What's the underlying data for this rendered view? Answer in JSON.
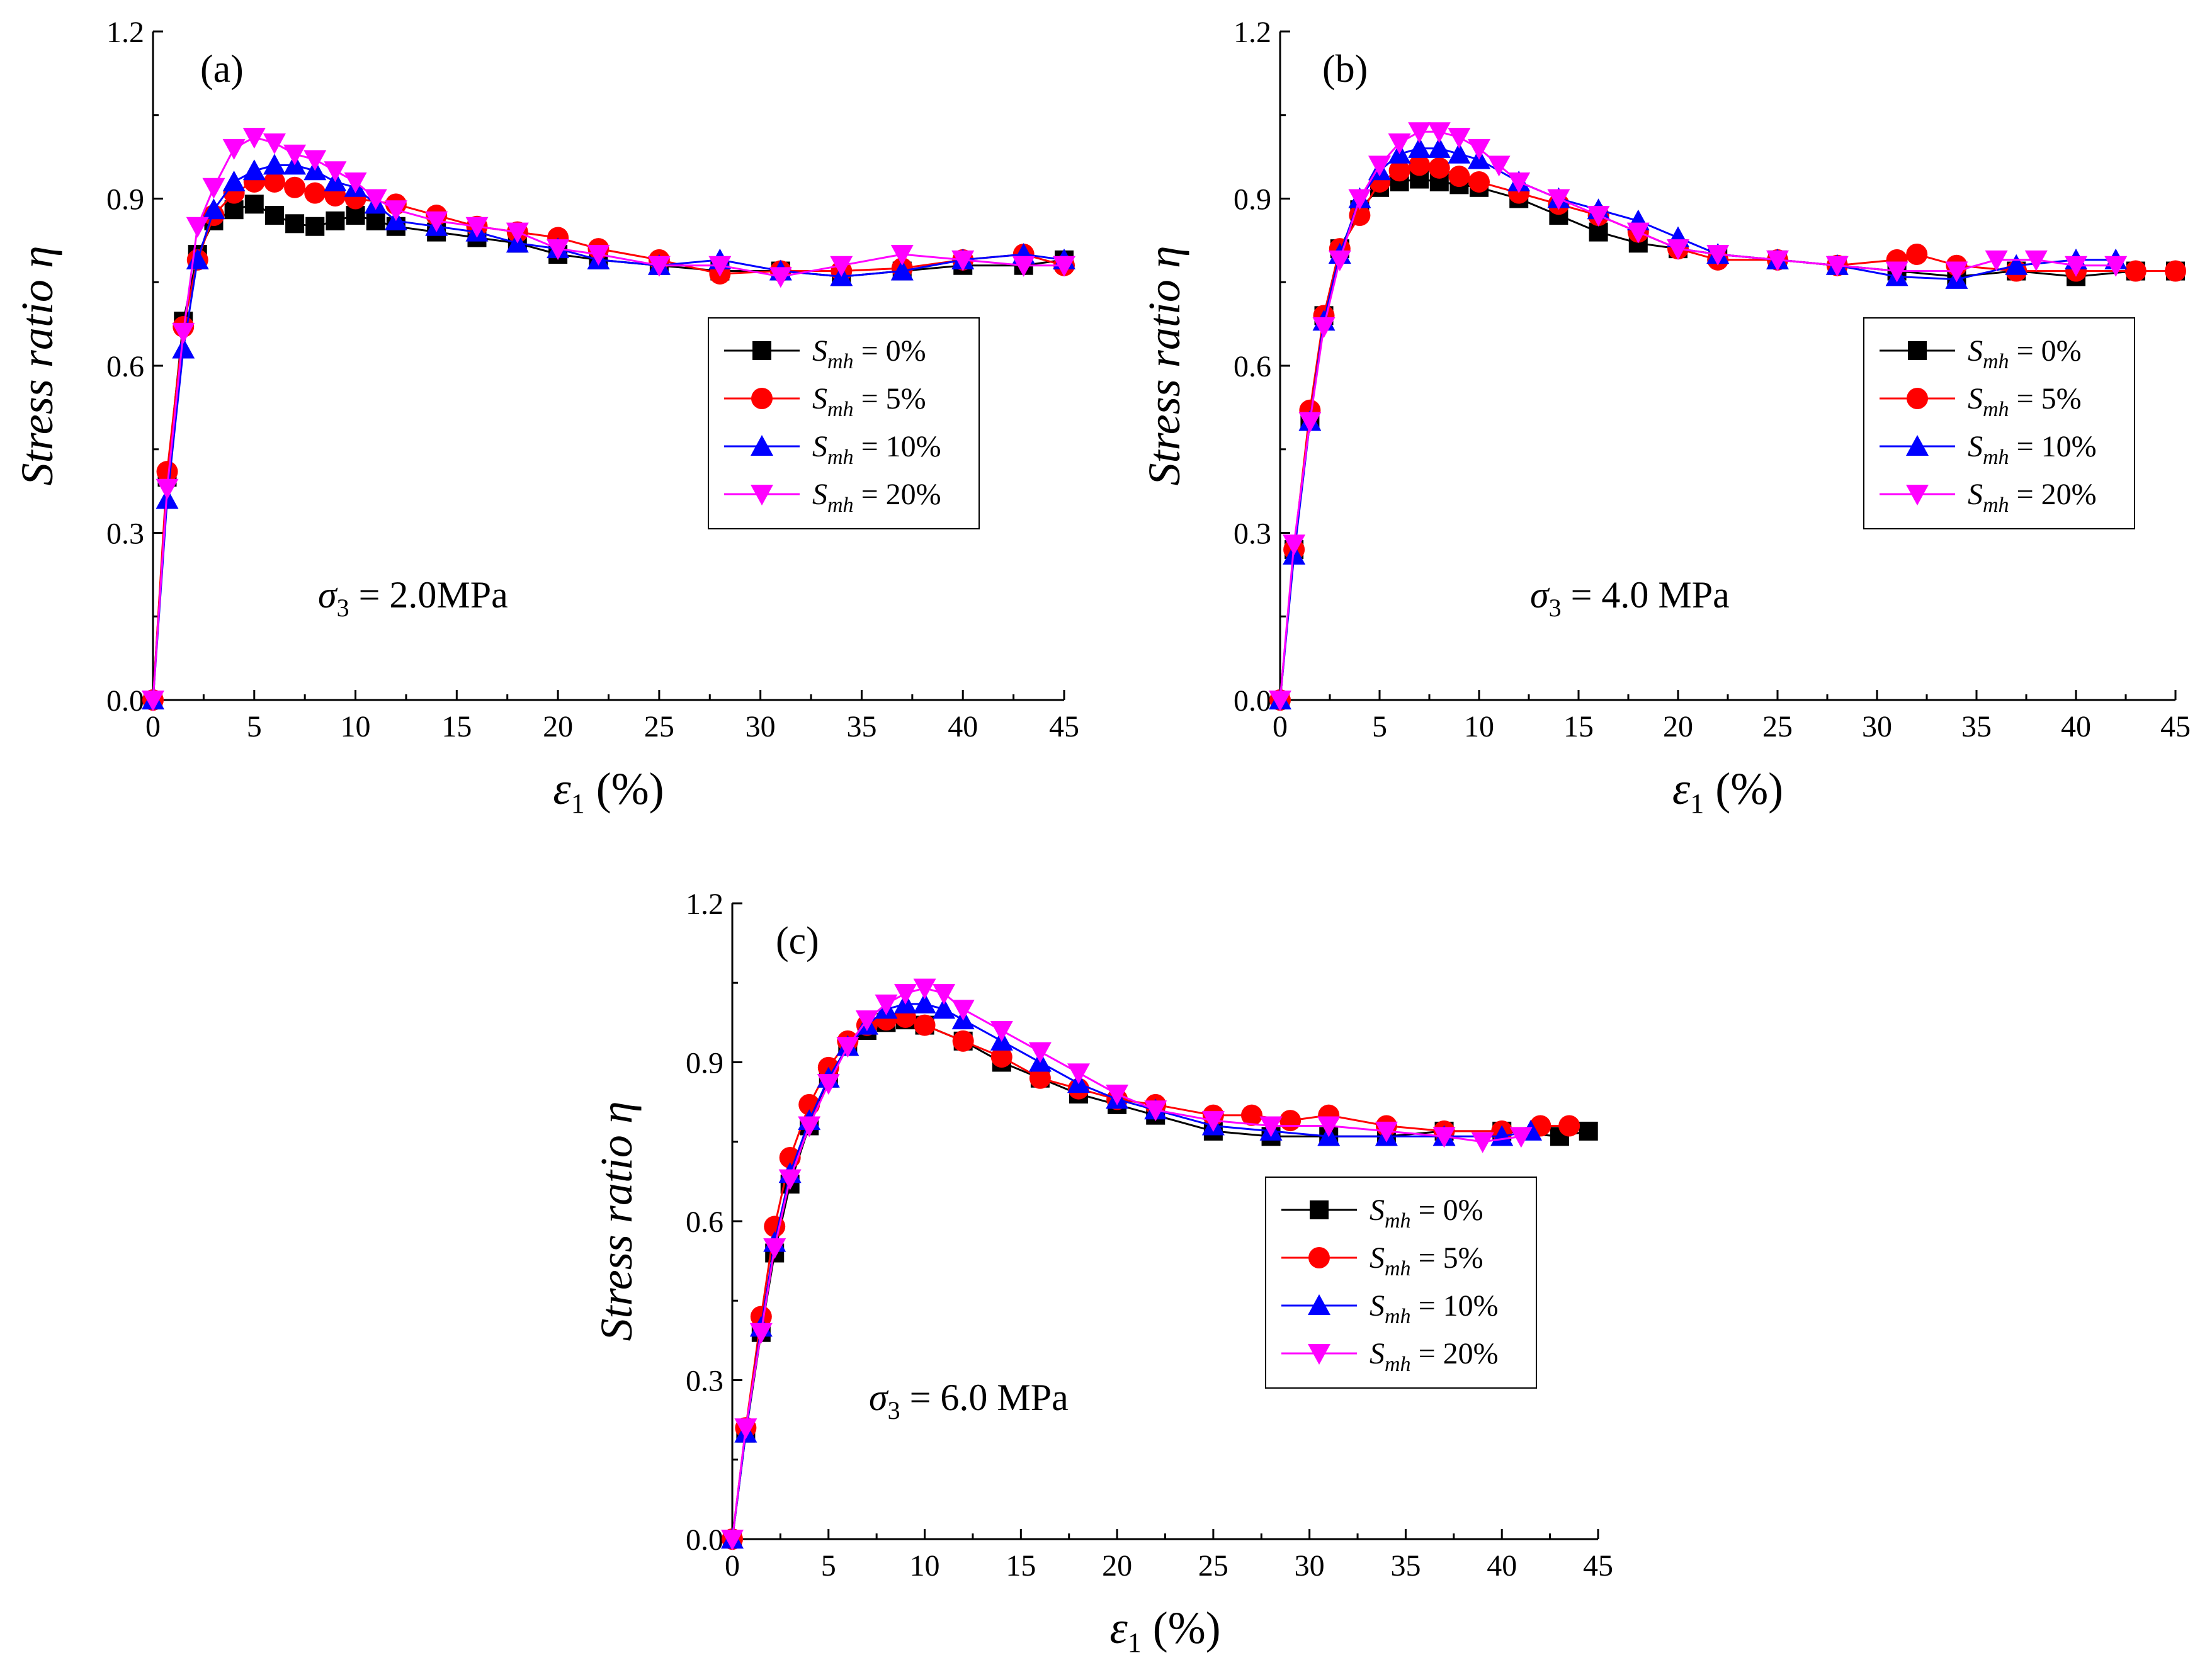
{
  "figure": {
    "legend_entries": [
      {
        "sym": "S",
        "sub": "mh",
        "value": " = 0%",
        "color": "#000000",
        "marker": "square"
      },
      {
        "sym": "S",
        "sub": "mh",
        "value": " = 5%",
        "color": "#ff0000",
        "marker": "circle"
      },
      {
        "sym": "S",
        "sub": "mh",
        "value": " = 10%",
        "color": "#0000ff",
        "marker": "triangle-up"
      },
      {
        "sym": "S",
        "sub": "mh",
        "value": " = 20%",
        "color": "#ff00ff",
        "marker": "triangle-down"
      }
    ]
  },
  "chart_data": [
    {
      "type": "line",
      "panel_label": "(a)",
      "annotation": {
        "sym": "σ",
        "sub": "3",
        "text": " = 2.0MPa"
      },
      "ylabel_italic": "Stress ratio ",
      "ylabel_symbol": "η",
      "xlabel_symbol": "ε",
      "xlabel_sub": "1",
      "xlabel_unit": "(%)",
      "xlim": [
        0,
        45
      ],
      "ylim": [
        0,
        1.2
      ],
      "xticks": [
        0,
        5,
        10,
        15,
        20,
        25,
        30,
        35,
        40,
        45
      ],
      "yticks": [
        "0.0",
        "0.3",
        "0.6",
        "0.9",
        "1.2"
      ],
      "series": [
        {
          "name": "S_mh = 0%",
          "x": [
            0,
            0.7,
            1.5,
            2.2,
            3,
            4,
            5,
            6,
            7,
            8,
            9,
            10,
            11,
            12,
            14,
            16,
            18,
            20,
            22,
            25,
            28,
            31,
            34,
            37,
            40,
            43,
            45
          ],
          "y": [
            0,
            0.4,
            0.68,
            0.8,
            0.86,
            0.88,
            0.89,
            0.87,
            0.855,
            0.85,
            0.86,
            0.87,
            0.86,
            0.85,
            0.84,
            0.83,
            0.82,
            0.8,
            0.79,
            0.78,
            0.77,
            0.77,
            0.76,
            0.77,
            0.78,
            0.78,
            0.79
          ]
        },
        {
          "name": "S_mh = 5%",
          "x": [
            0,
            0.7,
            1.5,
            2.2,
            3,
            4,
            5,
            6,
            7,
            8,
            9,
            10,
            12,
            14,
            16,
            18,
            20,
            22,
            25,
            28,
            31,
            34,
            37,
            40,
            43,
            45
          ],
          "y": [
            0,
            0.41,
            0.67,
            0.79,
            0.87,
            0.91,
            0.93,
            0.93,
            0.92,
            0.91,
            0.905,
            0.9,
            0.89,
            0.87,
            0.85,
            0.84,
            0.83,
            0.81,
            0.79,
            0.765,
            0.77,
            0.77,
            0.775,
            0.79,
            0.8,
            0.78
          ]
        },
        {
          "name": "S_mh = 10%",
          "x": [
            0,
            0.7,
            1.5,
            2.2,
            3,
            4,
            5,
            6,
            7,
            8,
            9,
            10,
            11,
            12,
            14,
            16,
            18,
            20,
            22,
            25,
            28,
            31,
            34,
            37,
            40,
            43,
            45
          ],
          "y": [
            0,
            0.36,
            0.63,
            0.79,
            0.88,
            0.93,
            0.95,
            0.96,
            0.96,
            0.95,
            0.93,
            0.92,
            0.89,
            0.86,
            0.85,
            0.84,
            0.82,
            0.81,
            0.79,
            0.78,
            0.79,
            0.77,
            0.76,
            0.77,
            0.79,
            0.8,
            0.79
          ]
        },
        {
          "name": "S_mh = 20%",
          "x": [
            0,
            0.7,
            1.5,
            2.2,
            3,
            4,
            5,
            6,
            7,
            8,
            9,
            10,
            11,
            12,
            14,
            16,
            18,
            20,
            22,
            25,
            28,
            31,
            34,
            37,
            40,
            43,
            45
          ],
          "y": [
            0,
            0.38,
            0.66,
            0.85,
            0.92,
            0.99,
            1.01,
            1.0,
            0.98,
            0.97,
            0.95,
            0.93,
            0.9,
            0.88,
            0.86,
            0.85,
            0.84,
            0.81,
            0.8,
            0.78,
            0.78,
            0.76,
            0.78,
            0.8,
            0.79,
            0.78,
            0.78
          ]
        }
      ]
    },
    {
      "type": "line",
      "panel_label": "(b)",
      "annotation": {
        "sym": "σ",
        "sub": "3",
        "text": " = 4.0 MPa"
      },
      "ylabel_italic": "Stress ratio ",
      "ylabel_symbol": "η",
      "xlabel_symbol": "ε",
      "xlabel_sub": "1",
      "xlabel_unit": "(%)",
      "xlim": [
        0,
        45
      ],
      "ylim": [
        0,
        1.2
      ],
      "xticks": [
        0,
        5,
        10,
        15,
        20,
        25,
        30,
        35,
        40,
        45
      ],
      "yticks": [
        "0.0",
        "0.3",
        "0.6",
        "0.9",
        "1.2"
      ],
      "series": [
        {
          "name": "S_mh = 0%",
          "x": [
            0,
            0.7,
            1.5,
            2.2,
            3,
            4,
            5,
            6,
            7,
            8,
            9,
            10,
            12,
            14,
            16,
            18,
            20,
            22,
            25,
            28,
            31,
            34,
            37,
            40,
            43,
            45
          ],
          "y": [
            0,
            0.27,
            0.5,
            0.69,
            0.81,
            0.88,
            0.92,
            0.93,
            0.935,
            0.93,
            0.925,
            0.92,
            0.9,
            0.87,
            0.84,
            0.82,
            0.81,
            0.8,
            0.79,
            0.78,
            0.77,
            0.76,
            0.77,
            0.76,
            0.77,
            0.77
          ]
        },
        {
          "name": "S_mh = 5%",
          "x": [
            0,
            0.7,
            1.5,
            2.2,
            3,
            4,
            5,
            6,
            7,
            8,
            9,
            10,
            12,
            14,
            16,
            18,
            20,
            22,
            25,
            28,
            31,
            32,
            34,
            37,
            40,
            43,
            45
          ],
          "y": [
            0,
            0.27,
            0.52,
            0.69,
            0.81,
            0.87,
            0.93,
            0.95,
            0.96,
            0.955,
            0.94,
            0.93,
            0.91,
            0.89,
            0.87,
            0.84,
            0.81,
            0.79,
            0.79,
            0.78,
            0.79,
            0.8,
            0.78,
            0.77,
            0.77,
            0.77,
            0.77
          ]
        },
        {
          "name": "S_mh = 10%",
          "x": [
            0,
            0.7,
            1.5,
            2.2,
            3,
            4,
            5,
            6,
            7,
            8,
            9,
            10,
            12,
            14,
            16,
            18,
            20,
            22,
            25,
            28,
            31,
            34,
            37,
            40,
            42
          ],
          "y": [
            0,
            0.26,
            0.5,
            0.68,
            0.8,
            0.9,
            0.95,
            0.98,
            0.99,
            0.99,
            0.98,
            0.97,
            0.93,
            0.9,
            0.88,
            0.86,
            0.83,
            0.8,
            0.79,
            0.78,
            0.76,
            0.755,
            0.78,
            0.79,
            0.79
          ]
        },
        {
          "name": "S_mh = 20%",
          "x": [
            0,
            0.7,
            1.5,
            2.2,
            3,
            4,
            5,
            6,
            7,
            8,
            9,
            10,
            11,
            12,
            14,
            16,
            18,
            20,
            22,
            25,
            28,
            31,
            34,
            36,
            38,
            40,
            42
          ],
          "y": [
            0,
            0.28,
            0.5,
            0.67,
            0.79,
            0.9,
            0.96,
            1.0,
            1.02,
            1.02,
            1.01,
            0.99,
            0.96,
            0.93,
            0.9,
            0.87,
            0.84,
            0.81,
            0.8,
            0.79,
            0.78,
            0.77,
            0.77,
            0.79,
            0.79,
            0.78,
            0.78
          ]
        }
      ]
    },
    {
      "type": "line",
      "panel_label": "(c)",
      "annotation": {
        "sym": "σ",
        "sub": "3",
        "text": " = 6.0 MPa"
      },
      "ylabel_italic": "Stress ratio ",
      "ylabel_symbol": "η",
      "xlabel_symbol": "ε",
      "xlabel_sub": "1",
      "xlabel_unit": "(%)",
      "xlim": [
        0,
        45
      ],
      "ylim": [
        0,
        1.2
      ],
      "xticks": [
        0,
        5,
        10,
        15,
        20,
        25,
        30,
        35,
        40,
        45
      ],
      "yticks": [
        "0.0",
        "0.3",
        "0.6",
        "0.9",
        "1.2"
      ],
      "series": [
        {
          "name": "S_mh = 0%",
          "x": [
            0,
            0.7,
            1.5,
            2.2,
            3,
            4,
            5,
            6,
            7,
            8,
            9,
            10,
            12,
            14,
            16,
            18,
            20,
            22,
            25,
            28,
            31,
            34,
            37,
            40,
            43,
            44.5
          ],
          "y": [
            0,
            0.2,
            0.39,
            0.54,
            0.67,
            0.78,
            0.87,
            0.93,
            0.96,
            0.975,
            0.98,
            0.97,
            0.94,
            0.9,
            0.87,
            0.84,
            0.82,
            0.8,
            0.77,
            0.76,
            0.76,
            0.76,
            0.77,
            0.77,
            0.76,
            0.77
          ]
        },
        {
          "name": "S_mh = 5%",
          "x": [
            0,
            0.7,
            1.5,
            2.2,
            3,
            4,
            5,
            6,
            7,
            8,
            9,
            10,
            12,
            14,
            16,
            18,
            20,
            22,
            25,
            27,
            29,
            31,
            34,
            37,
            40,
            42,
            43.5
          ],
          "y": [
            0,
            0.21,
            0.42,
            0.59,
            0.72,
            0.82,
            0.89,
            0.94,
            0.97,
            0.98,
            0.985,
            0.97,
            0.94,
            0.91,
            0.87,
            0.85,
            0.83,
            0.82,
            0.8,
            0.8,
            0.79,
            0.8,
            0.78,
            0.77,
            0.77,
            0.78,
            0.78
          ]
        },
        {
          "name": "S_mh = 10%",
          "x": [
            0,
            0.7,
            1.5,
            2.2,
            3,
            4,
            5,
            6,
            7,
            8,
            9,
            10,
            11,
            12,
            14,
            16,
            18,
            20,
            22,
            25,
            28,
            31,
            34,
            37,
            40,
            41.5
          ],
          "y": [
            0,
            0.2,
            0.4,
            0.56,
            0.69,
            0.79,
            0.87,
            0.93,
            0.97,
            1.0,
            1.01,
            1.01,
            1.0,
            0.98,
            0.94,
            0.9,
            0.86,
            0.83,
            0.81,
            0.78,
            0.77,
            0.76,
            0.76,
            0.76,
            0.76,
            0.77
          ]
        },
        {
          "name": "S_mh = 20%",
          "x": [
            0,
            0.7,
            1.5,
            2.2,
            3,
            4,
            5,
            6,
            7,
            8,
            9,
            10,
            11,
            12,
            14,
            16,
            18,
            20,
            22,
            25,
            28,
            31,
            34,
            37,
            39,
            41
          ],
          "y": [
            0,
            0.21,
            0.39,
            0.55,
            0.68,
            0.78,
            0.86,
            0.93,
            0.98,
            1.01,
            1.03,
            1.04,
            1.03,
            1.0,
            0.96,
            0.92,
            0.88,
            0.84,
            0.81,
            0.79,
            0.78,
            0.78,
            0.77,
            0.76,
            0.75,
            0.76
          ]
        }
      ]
    }
  ]
}
